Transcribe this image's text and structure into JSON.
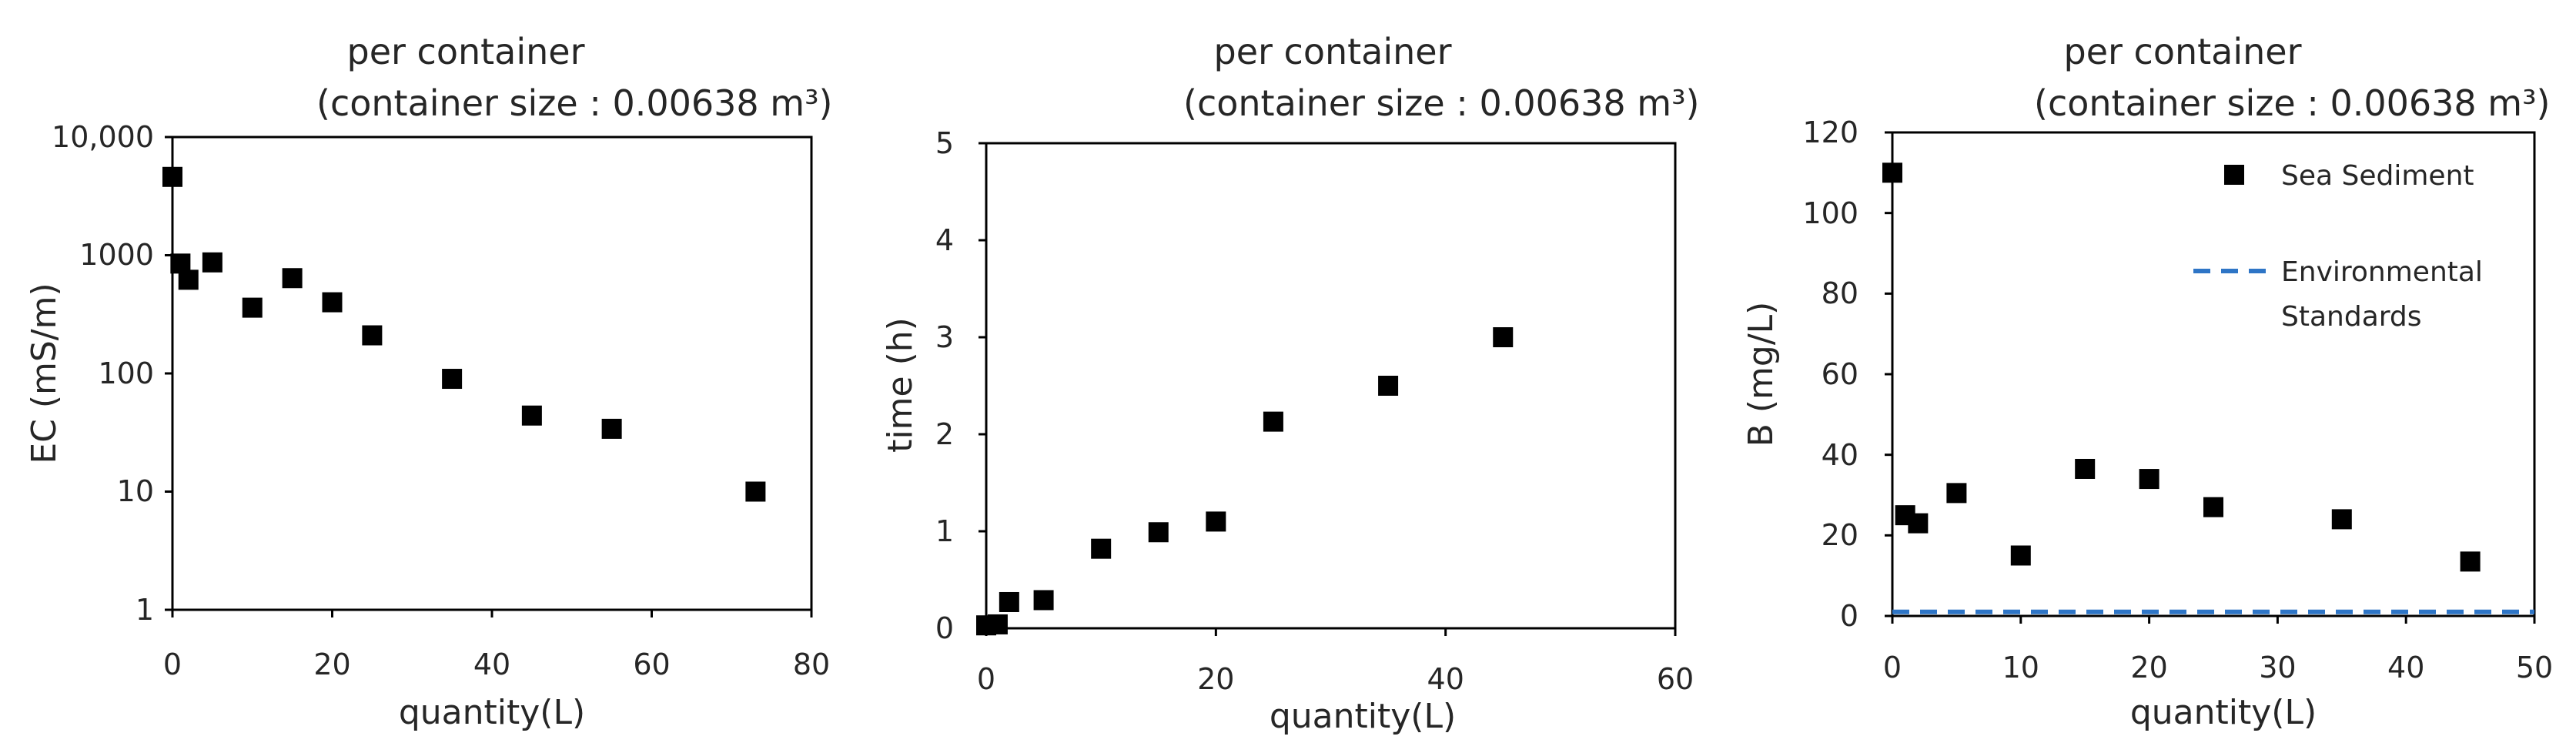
{
  "chart_data": [
    {
      "type": "scatter",
      "title": "per container",
      "subtitle": "(container size : 0.00638 m³)",
      "xlabel": "quantity(L)",
      "ylabel": "EC (mS/m)",
      "xlim": [
        0,
        80
      ],
      "ylim": [
        1,
        10000
      ],
      "yscale": "log",
      "xticks": [
        "0",
        "20",
        "40",
        "60",
        "80"
      ],
      "yticks": [
        "1",
        "10",
        "100",
        "1000",
        "10,000"
      ],
      "grid": false,
      "series": [
        {
          "x": [
            0,
            1,
            2,
            5,
            10,
            15,
            20,
            25,
            35,
            45,
            55,
            73
          ],
          "y": [
            4600,
            850,
            620,
            870,
            360,
            640,
            400,
            210,
            90,
            44,
            34,
            10
          ]
        }
      ]
    },
    {
      "type": "scatter",
      "title": "per container",
      "subtitle": "(container size : 0.00638 m³)",
      "xlabel": "quantity(L)",
      "ylabel": "time (h)",
      "xlim": [
        0,
        60
      ],
      "ylim": [
        0,
        5
      ],
      "xticks": [
        "0",
        "20",
        "40",
        "60"
      ],
      "yticks": [
        "0",
        "1",
        "2",
        "3",
        "4",
        "5"
      ],
      "grid": false,
      "series": [
        {
          "x": [
            0,
            1,
            2,
            5,
            10,
            15,
            20,
            25,
            35,
            45
          ],
          "y": [
            0.03,
            0.04,
            0.27,
            0.29,
            0.82,
            0.99,
            1.1,
            2.13,
            2.5,
            3.0
          ]
        }
      ]
    },
    {
      "type": "scatter",
      "title": "per container",
      "subtitle": "(container size : 0.00638 m³)",
      "xlabel": "quantity(L)",
      "ylabel": "B (mg/L)",
      "xlim": [
        0,
        50
      ],
      "ylim": [
        0,
        120
      ],
      "xticks": [
        "0",
        "10",
        "20",
        "30",
        "40",
        "50"
      ],
      "yticks": [
        "0",
        "20",
        "40",
        "60",
        "80",
        "100",
        "120"
      ],
      "grid": false,
      "legend_position": "top-right",
      "series": [
        {
          "name": "Sea Sediment",
          "x": [
            0,
            1,
            2,
            5,
            10,
            15,
            20,
            25,
            35,
            45
          ],
          "y": [
            110,
            25,
            23,
            30.5,
            15,
            36.5,
            34,
            27,
            24,
            13.5
          ]
        }
      ],
      "reference_line": {
        "name_lines": [
          "Environmental",
          "Standards"
        ],
        "y": 1,
        "color": "#2E75C6",
        "style": "dashed"
      }
    }
  ]
}
